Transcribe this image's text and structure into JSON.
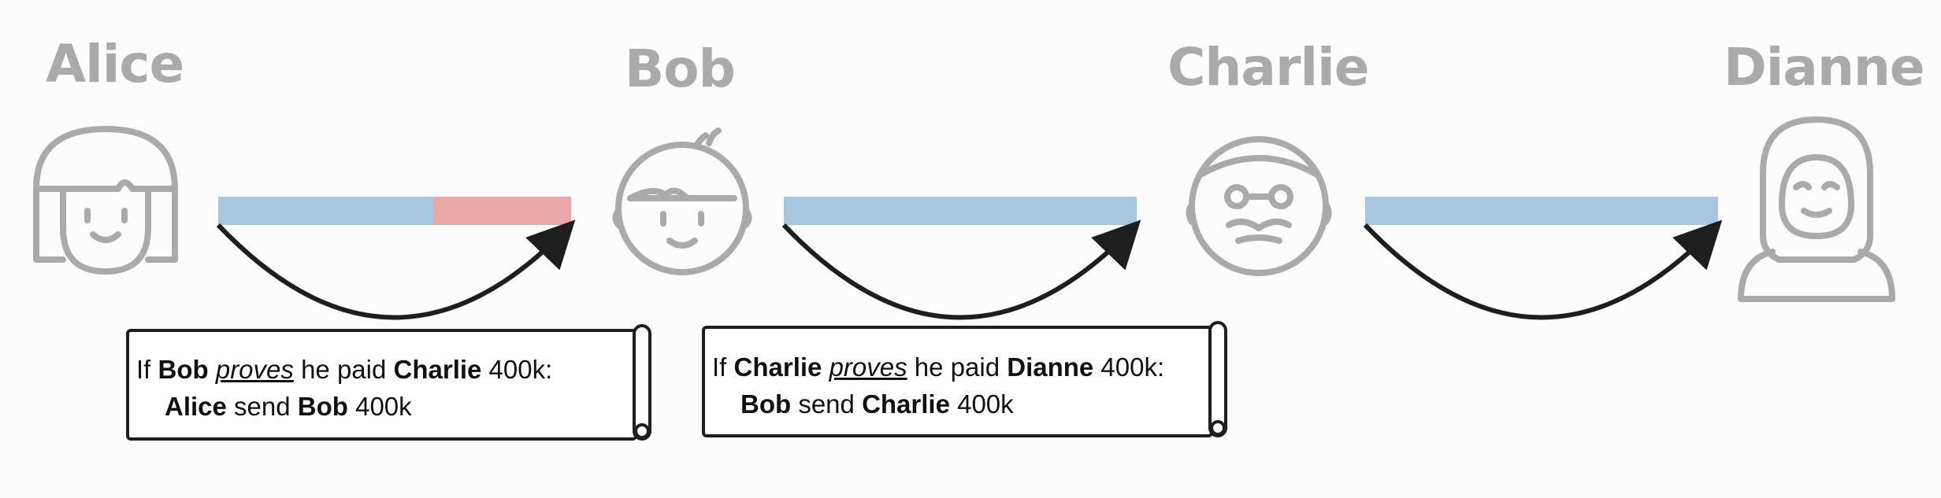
{
  "participants": [
    {
      "name": "Alice",
      "icon": "girl-avatar-icon"
    },
    {
      "name": "Bob",
      "icon": "boy-avatar-icon"
    },
    {
      "name": "Charlie",
      "icon": "old-man-with-glasses-icon"
    },
    {
      "name": "Dianne",
      "icon": "woman-with-hijab-icon"
    }
  ],
  "channels": [
    {
      "from": "Alice",
      "to": "Bob",
      "locked_fraction": 0.39
    },
    {
      "from": "Bob",
      "to": "Charlie",
      "locked_fraction": 0
    },
    {
      "from": "Charlie",
      "to": "Dianne",
      "locked_fraction": 0
    }
  ],
  "contracts": [
    {
      "l1_prefix": "If ",
      "l1_a": "Bob",
      "l1_verb": "proves",
      "l1_mid": " he paid ",
      "l1_b": "Charlie",
      "l1_amount": " 400k:",
      "l2_a": "Alice",
      "l2_mid": " send ",
      "l2_b": "Bob",
      "l2_amount": " 400k"
    },
    {
      "l1_prefix": "If ",
      "l1_a": "Charlie",
      "l1_verb": "proves",
      "l1_mid": " he paid ",
      "l1_b": "Dianne",
      "l1_amount": " 400k:",
      "l2_a": "Bob",
      "l2_mid": " send ",
      "l2_b": "Charlie",
      "l2_amount": " 400k"
    }
  ],
  "colors": {
    "name_gray": "#aaaaaa",
    "icon_gray": "#aaaaaa",
    "channel_blue": "#a7c7e0",
    "channel_locked": "#e8a8a8",
    "arrow": "#1e1e1e"
  }
}
